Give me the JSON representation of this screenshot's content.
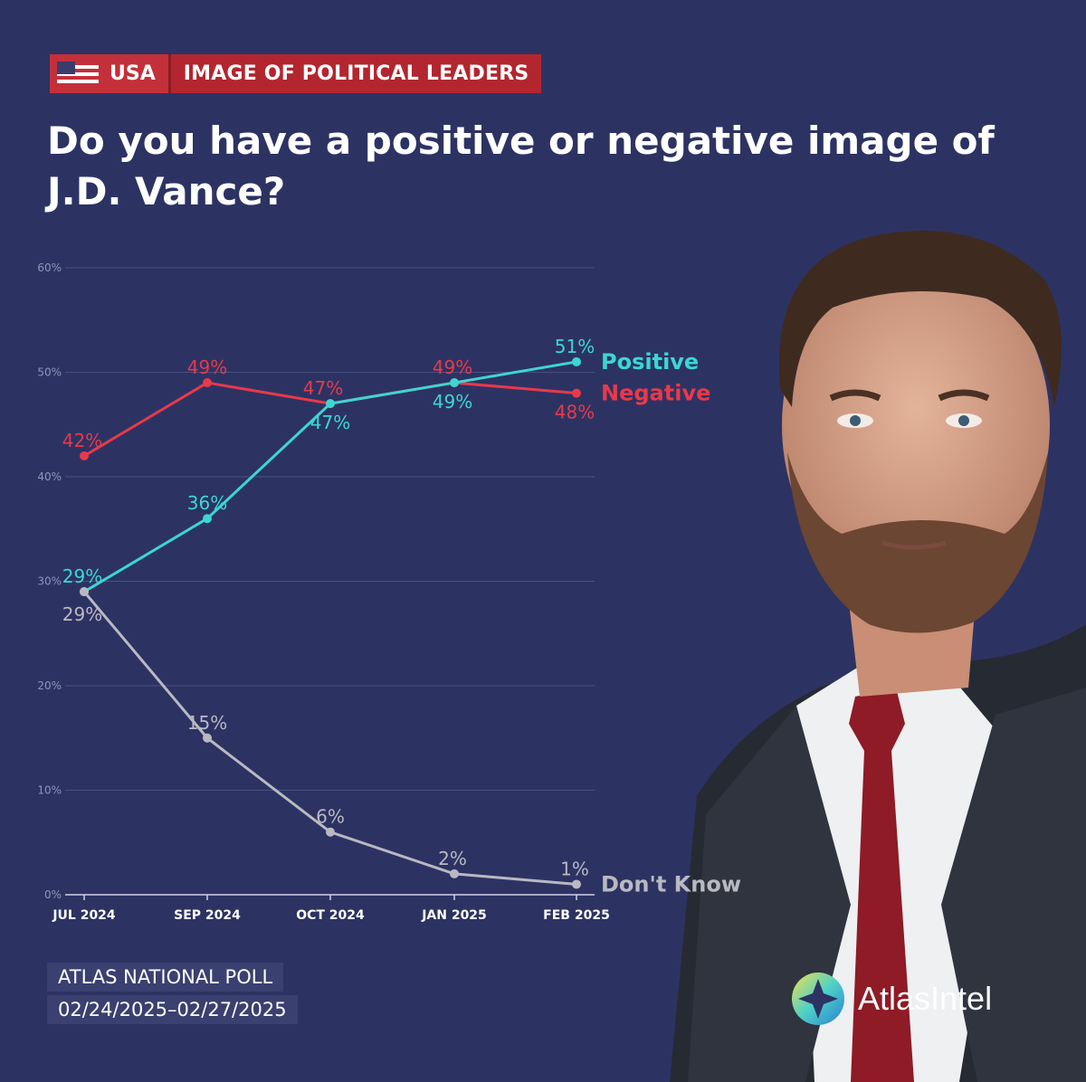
{
  "tag": {
    "country": "USA",
    "topic": "IMAGE OF POLITICAL LEADERS",
    "flag_icon": "us-flag-icon"
  },
  "title": "Do you have a positive or negative image of J.D. Vance?",
  "colors": {
    "background": "#2c3363",
    "positive": "#3dd6d0",
    "negative": "#e8394a",
    "dont_know": "#b9b9c2",
    "tag_red": "#b3262f"
  },
  "chart_data": {
    "type": "line",
    "categories": [
      "JUL 2024",
      "SEP 2024",
      "OCT 2024",
      "JAN 2025",
      "FEB 2025"
    ],
    "ylim": [
      0,
      60
    ],
    "yticks": [
      "0%",
      "10%",
      "20%",
      "30%",
      "40%",
      "50%",
      "60%"
    ],
    "grid": true,
    "series": [
      {
        "name": "Positive",
        "values": [
          29,
          36,
          47,
          49,
          51
        ],
        "labels": [
          "29%",
          "36%",
          "47%",
          "49%",
          "51%"
        ]
      },
      {
        "name": "Negative",
        "values": [
          42,
          49,
          47,
          49,
          48
        ],
        "labels": [
          "42%",
          "49%",
          "47%",
          "49%",
          "48%"
        ]
      },
      {
        "name": "Don't Know",
        "values": [
          29,
          15,
          6,
          2,
          1
        ],
        "labels": [
          "29%",
          "15%",
          "6%",
          "2%",
          "1%"
        ]
      }
    ]
  },
  "footer": {
    "poll_name": "ATLAS NATIONAL POLL",
    "dates": "02/24/2025–02/27/2025"
  },
  "brand": {
    "name": "AtlasIntel",
    "logo_icon": "atlasintel-logo-icon"
  }
}
